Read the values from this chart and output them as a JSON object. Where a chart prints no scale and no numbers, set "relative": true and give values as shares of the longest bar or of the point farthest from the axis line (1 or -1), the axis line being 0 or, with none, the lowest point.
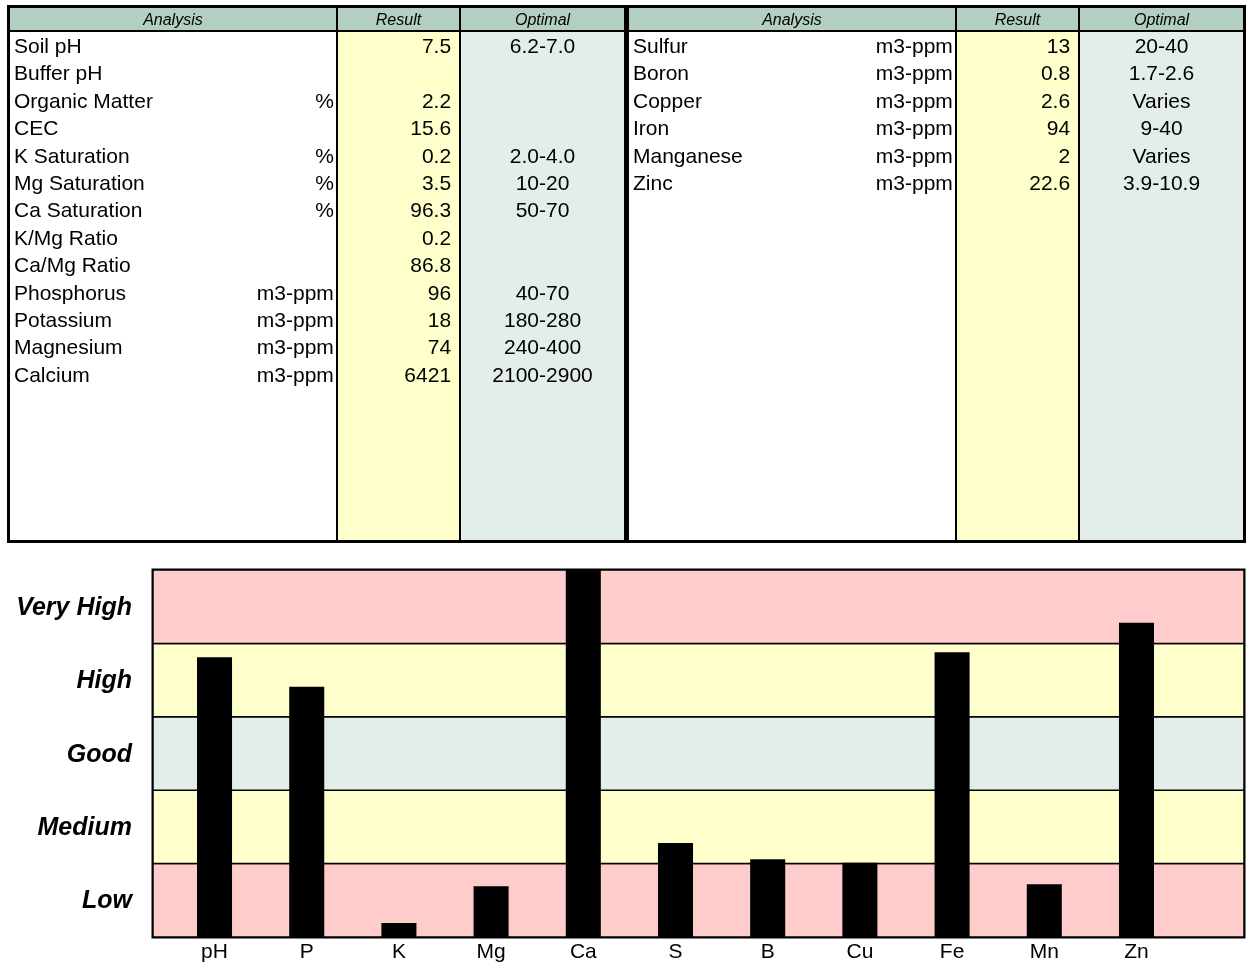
{
  "chart_data": [
    {
      "type": "other",
      "categories": [
        "Analysis",
        null,
        "Result",
        "Optimal"
      ],
      "cell_labels": [
        [
          "Soil pH",
          null,
          "7.5",
          "6.2-7.0"
        ],
        [
          "Buffer pH",
          null,
          null,
          null
        ],
        [
          "Organic Matter",
          "%",
          "2.2",
          null
        ],
        [
          "CEC",
          null,
          "15.6",
          null
        ],
        [
          "K Saturation",
          "%",
          "0.2",
          "2.0-4.0"
        ],
        [
          "Mg Saturation",
          "%",
          "3.5",
          "10-20"
        ],
        [
          "Ca Saturation",
          "%",
          "96.3",
          "50-70"
        ],
        [
          "K/Mg Ratio",
          null,
          "0.2",
          null
        ],
        [
          "Ca/Mg Ratio",
          null,
          "86.8",
          null
        ],
        [
          "Phosphorus",
          "m3-ppm",
          "96",
          "40-70"
        ],
        [
          "Potassium",
          "m3-ppm",
          "18",
          "180-280"
        ],
        [
          "Magnesium",
          "m3-ppm",
          "74",
          "240-400"
        ],
        [
          "Calcium",
          "m3-ppm",
          "6421",
          "2100-2900"
        ]
      ]
    },
    {
      "type": "other",
      "categories": [
        "Analysis",
        null,
        "Result",
        "Optimal"
      ],
      "cell_labels": [
        [
          "Sulfur",
          "m3-ppm",
          "13",
          "20-40"
        ],
        [
          "Boron",
          "m3-ppm",
          "0.8",
          "1.7-2.6"
        ],
        [
          "Copper",
          "m3-ppm",
          "2.6",
          "Varies"
        ],
        [
          "Iron",
          "m3-ppm",
          "94",
          "9-40"
        ],
        [
          "Manganese",
          "m3-ppm",
          "2",
          "Varies"
        ],
        [
          "Zinc",
          "m3-ppm",
          "22.6",
          "3.9-10.9"
        ]
      ]
    },
    {
      "type": "bar",
      "categories": [
        "pH",
        "P",
        "K",
        "Mg",
        "Ca",
        "S",
        "B",
        "Cu",
        "Fe",
        "Mn",
        "Zn"
      ],
      "values": [
        0.762,
        0.682,
        0.038,
        0.138,
        1.0,
        0.256,
        0.212,
        0.202,
        0.776,
        0.144,
        0.856
      ],
      "color": "#000000",
      "relative": true,
      "bands": [
        {
          "axis": "y",
          "from": 0,
          "to": 0.2,
          "label": "Low",
          "color": "#ffcccc"
        },
        {
          "axis": "y",
          "from": 0.2,
          "to": 0.4,
          "label": "Medium",
          "color": "#ffffcc"
        },
        {
          "axis": "y",
          "from": 0.4,
          "to": 0.6,
          "label": "Good",
          "color": "#e4eee8"
        },
        {
          "axis": "y",
          "from": 0.6,
          "to": 0.8,
          "label": "High",
          "color": "#ffffcc"
        },
        {
          "axis": "y",
          "from": 0.8,
          "to": 1.0,
          "label": "Very High",
          "color": "#ffcccc"
        }
      ]
    }
  ]
}
